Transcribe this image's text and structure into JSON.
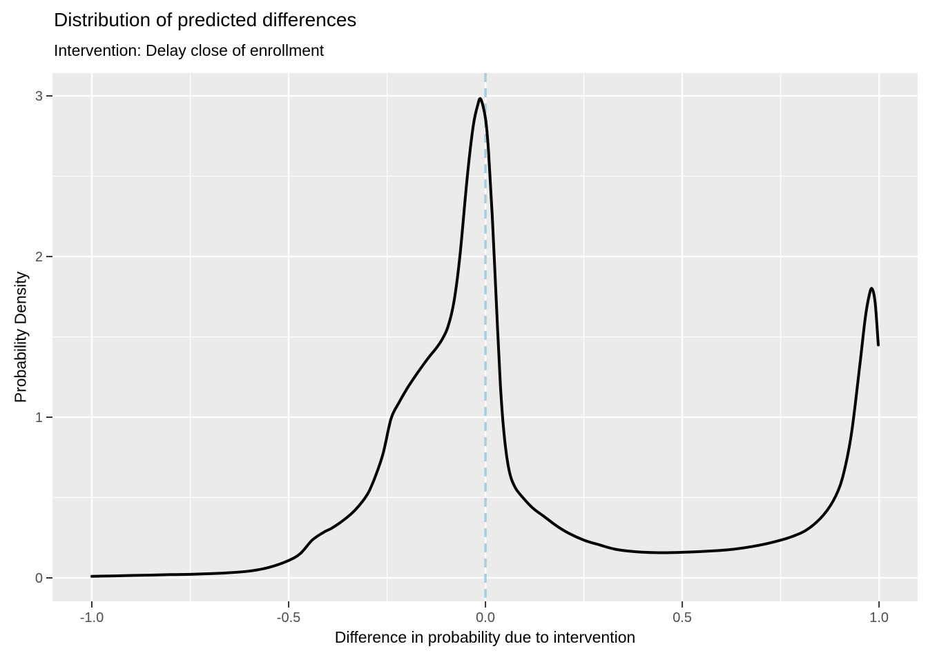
{
  "chart_data": {
    "type": "line",
    "subtype": "density",
    "title": "Distribution of predicted differences",
    "subtitle": "Intervention: Delay close of enrollment",
    "xlabel": "Difference in probability due to intervention",
    "ylabel": "Probability Density",
    "xlim": [
      -1.1,
      1.098
    ],
    "ylim": [
      -0.146,
      3.142
    ],
    "x_ticks": [
      -1.0,
      -0.5,
      0.0,
      0.5,
      1.0
    ],
    "x_tick_labels": [
      "-1.0",
      "-0.5",
      "0.0",
      "0.5",
      "1.0"
    ],
    "x_minor_ticks": [
      -0.75,
      -0.25,
      0.25,
      0.75
    ],
    "y_ticks": [
      0,
      1,
      2,
      3
    ],
    "y_tick_labels": [
      "0",
      "1",
      "2",
      "3"
    ],
    "y_minor_ticks": [
      0.5,
      1.5,
      2.5
    ],
    "grid": true,
    "legend_position": "none",
    "panel_bg_color": "#EBEBEB",
    "grid_color": "#FFFFFF",
    "tick_mark_color": "#333333",
    "tick_label_color": "#4D4D4D",
    "reference_line": {
      "orientation": "vertical",
      "x": 0.0,
      "style": "dashed",
      "color": "#A6CEE3"
    },
    "series": [
      {
        "name": "predicted-difference-density",
        "color": "#000000",
        "points": [
          [
            -1.0,
            0.01
          ],
          [
            -0.95,
            0.012
          ],
          [
            -0.9,
            0.015
          ],
          [
            -0.85,
            0.017
          ],
          [
            -0.8,
            0.02
          ],
          [
            -0.75,
            0.022
          ],
          [
            -0.7,
            0.026
          ],
          [
            -0.65,
            0.032
          ],
          [
            -0.6,
            0.042
          ],
          [
            -0.55,
            0.065
          ],
          [
            -0.5,
            0.108
          ],
          [
            -0.47,
            0.152
          ],
          [
            -0.44,
            0.235
          ],
          [
            -0.41,
            0.285
          ],
          [
            -0.39,
            0.31
          ],
          [
            -0.36,
            0.36
          ],
          [
            -0.33,
            0.425
          ],
          [
            -0.3,
            0.52
          ],
          [
            -0.28,
            0.63
          ],
          [
            -0.26,
            0.775
          ],
          [
            -0.24,
            0.99
          ],
          [
            -0.22,
            1.09
          ],
          [
            -0.2,
            1.175
          ],
          [
            -0.18,
            1.25
          ],
          [
            -0.16,
            1.32
          ],
          [
            -0.14,
            1.385
          ],
          [
            -0.125,
            1.43
          ],
          [
            -0.11,
            1.485
          ],
          [
            -0.095,
            1.565
          ],
          [
            -0.08,
            1.72
          ],
          [
            -0.065,
            2.0
          ],
          [
            -0.05,
            2.4
          ],
          [
            -0.04,
            2.64
          ],
          [
            -0.03,
            2.83
          ],
          [
            -0.02,
            2.94
          ],
          [
            -0.012,
            2.98
          ],
          [
            0.0,
            2.86
          ],
          [
            0.008,
            2.65
          ],
          [
            0.018,
            2.22
          ],
          [
            0.028,
            1.7
          ],
          [
            0.038,
            1.2
          ],
          [
            0.048,
            0.88
          ],
          [
            0.06,
            0.67
          ],
          [
            0.075,
            0.565
          ],
          [
            0.095,
            0.5
          ],
          [
            0.12,
            0.435
          ],
          [
            0.15,
            0.38
          ],
          [
            0.18,
            0.325
          ],
          [
            0.21,
            0.28
          ],
          [
            0.25,
            0.235
          ],
          [
            0.29,
            0.205
          ],
          [
            0.33,
            0.178
          ],
          [
            0.38,
            0.163
          ],
          [
            0.43,
            0.157
          ],
          [
            0.48,
            0.158
          ],
          [
            0.53,
            0.162
          ],
          [
            0.58,
            0.168
          ],
          [
            0.63,
            0.178
          ],
          [
            0.68,
            0.196
          ],
          [
            0.73,
            0.222
          ],
          [
            0.78,
            0.258
          ],
          [
            0.82,
            0.305
          ],
          [
            0.86,
            0.395
          ],
          [
            0.89,
            0.51
          ],
          [
            0.91,
            0.65
          ],
          [
            0.93,
            0.9
          ],
          [
            0.95,
            1.3
          ],
          [
            0.965,
            1.62
          ],
          [
            0.975,
            1.76
          ],
          [
            0.982,
            1.8
          ],
          [
            0.99,
            1.715
          ],
          [
            0.998,
            1.45
          ]
        ]
      }
    ]
  }
}
